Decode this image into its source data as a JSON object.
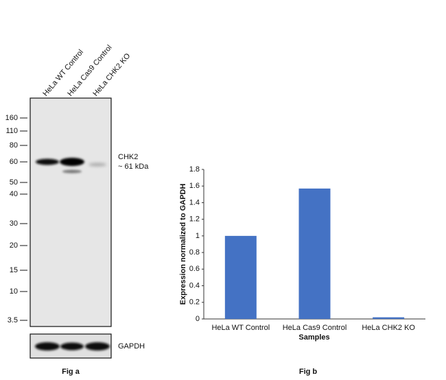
{
  "blot": {
    "lane_labels": [
      "HeLa WT Control",
      "HeLa Cas9 Control",
      "HeLa CHK2 KO"
    ],
    "markers": [
      160,
      110,
      80,
      60,
      50,
      40,
      30,
      20,
      15,
      10,
      3.5
    ],
    "band_label": "CHK2",
    "band_size": "~ 61 kDa",
    "loading_control": "GAPDH",
    "caption": "Fig a"
  },
  "chart_data": {
    "type": "bar",
    "categories": [
      "HeLa WT Control",
      "HeLa Cas9 Control",
      "HeLa CHK2 KO"
    ],
    "values": [
      1,
      1.57,
      0.02
    ],
    "color": "#4472c4",
    "xlabel": "Samples",
    "ylabel": "Expression normalized to GAPDH",
    "ylim": [
      0,
      1.8
    ],
    "yticks": [
      0,
      0.2,
      0.4,
      0.6,
      0.8,
      1,
      1.2,
      1.4,
      1.6,
      1.8
    ],
    "caption": "Fig b"
  }
}
